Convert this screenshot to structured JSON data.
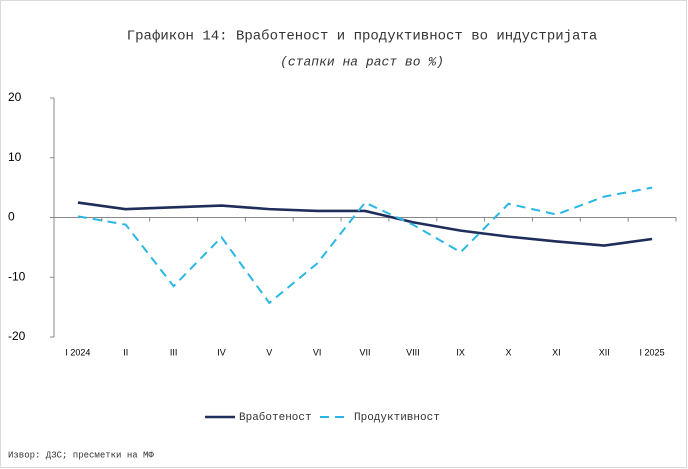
{
  "chart_data": {
    "type": "line",
    "title": "Графикон 14: Вработеност и продуктивност во индустријата",
    "subtitle": "(стапки на раст во %)",
    "source": "Извор: ДЗС; пресметки на МФ",
    "categories": [
      "I 2024",
      "II",
      "III",
      "IV",
      "V",
      "VI",
      "VII",
      "VIII",
      "IX",
      "X",
      "XI",
      "XII",
      "I 2025"
    ],
    "series": [
      {
        "name": "Вработеност",
        "color": "#1f2d5a",
        "dashed": false,
        "values": [
          2.5,
          1.4,
          1.7,
          2.0,
          1.4,
          1.1,
          1.1,
          -0.8,
          -2.2,
          -3.2,
          -4.0,
          -4.7,
          -3.6
        ]
      },
      {
        "name": "Продуктивност",
        "color": "#2ab7e6",
        "dashed": true,
        "values": [
          0.2,
          -1.2,
          -11.5,
          -3.3,
          -14.3,
          -7.7,
          2.5,
          -1.2,
          -5.8,
          2.3,
          0.5,
          3.5,
          5.0
        ]
      }
    ],
    "ylim": [
      -20,
      20
    ],
    "yticks": [
      -20,
      -10,
      0,
      10,
      20
    ],
    "grid": false,
    "legend": "bottom"
  }
}
